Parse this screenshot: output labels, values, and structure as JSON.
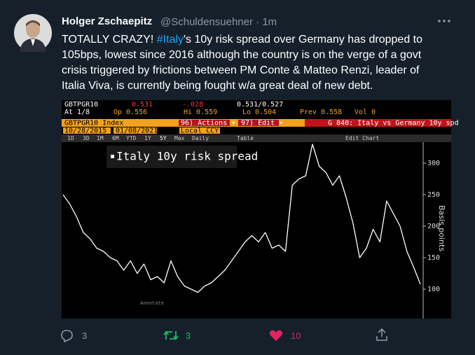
{
  "tweet": {
    "author": "Holger Zschaepitz",
    "meta": "@Schuldensuehner · 1m",
    "lines": [
      [
        "TOTALLY CRAZY! ",
        "#Italy",
        "'s 10y risk spread over Germany has dropped to"
      ],
      "105bps, lowest since 2016 although the country is on the verge of a govt",
      "crisis triggered by frictions between PM Conte & Matteo Renzi, leader of",
      "Italia Viva, is currently being fought w/a great deal of new debt."
    ],
    "replies": 3,
    "retweets": 3,
    "likes": 10
  },
  "terminal": {
    "row1": [
      "GBTPGR10",
      "0.531",
      "-.028",
      "0.531/0.527"
    ],
    "row2": [
      "At 1/8",
      "Op 0.556",
      "Hi 0.559",
      "Lo 0.504",
      "Prev 0.558",
      "Vol 0"
    ],
    "row3": [
      "GBTPGR10 Index",
      "96) Actions ▾",
      "97) Edit ▾",
      "G 840: Italy vs Germany 10y spd"
    ],
    "row4": [
      "10/28/2015",
      "01/08/2021",
      "Local CCY"
    ],
    "toolbar": [
      "1D",
      "3D",
      "1M",
      "6M",
      "YTD",
      "1Y",
      "5Y",
      "Max",
      "Daily",
      "Table",
      "Edit Chart"
    ],
    "annotate": "Annotate"
  },
  "chart_data": {
    "type": "line",
    "y_label": "Basis points",
    "series": [
      {
        "name": "Italy 10y risk spread",
        "color": "#ffffff",
        "values": [
          250,
          235,
          215,
          190,
          180,
          165,
          160,
          150,
          145,
          130,
          145,
          125,
          140,
          115,
          120,
          110,
          145,
          120,
          105,
          100,
          95,
          105,
          110,
          120,
          130,
          145,
          160,
          175,
          185,
          175,
          190,
          165,
          170,
          160,
          265,
          275,
          280,
          330,
          295,
          285,
          265,
          280,
          245,
          205,
          150,
          165,
          195,
          175,
          240,
          220,
          200,
          160,
          135,
          108
        ]
      }
    ],
    "ylim": [
      60,
      330
    ],
    "yticks": [
      100,
      150,
      200,
      250,
      300
    ]
  }
}
